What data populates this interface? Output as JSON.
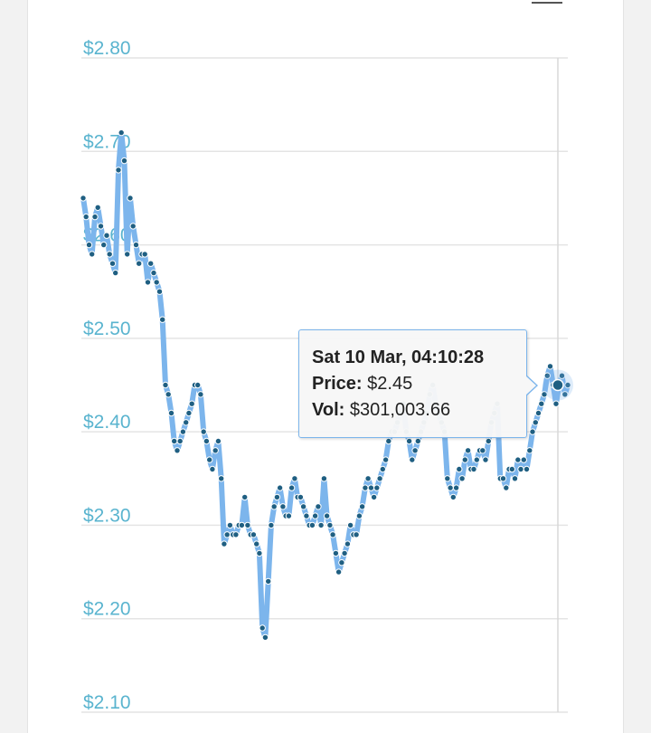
{
  "chart_data": {
    "type": "line",
    "y_ticks": [
      "$2.80",
      "$2.70",
      "$2.60",
      "$2.50",
      "$2.40",
      "$2.30",
      "$2.20",
      "$2.10"
    ],
    "ylim": [
      2.1,
      2.8
    ],
    "grid": true,
    "series_color": "#7cb5ec",
    "marker_color": "#1f5f82",
    "tick_color": "#5ab4cf",
    "series": [
      {
        "values": [
          2.65,
          2.63,
          2.6,
          2.59,
          2.63,
          2.64,
          2.62,
          2.6,
          2.61,
          2.59,
          2.58,
          2.57,
          2.68,
          2.72,
          2.69,
          2.59,
          2.65,
          2.62,
          2.6,
          2.58,
          2.59,
          2.59,
          2.56,
          2.58,
          2.57,
          2.56,
          2.55,
          2.52,
          2.45,
          2.44,
          2.42,
          2.39,
          2.38,
          2.39,
          2.4,
          2.41,
          2.42,
          2.43,
          2.45,
          2.45,
          2.44,
          2.4,
          2.39,
          2.37,
          2.36,
          2.38,
          2.39,
          2.35,
          2.28,
          2.29,
          2.3,
          2.29,
          2.29,
          2.3,
          2.3,
          2.33,
          2.3,
          2.29,
          2.29,
          2.28,
          2.27,
          2.19,
          2.18,
          2.24,
          2.3,
          2.32,
          2.33,
          2.34,
          2.32,
          2.31,
          2.31,
          2.34,
          2.35,
          2.33,
          2.33,
          2.32,
          2.31,
          2.3,
          2.3,
          2.31,
          2.32,
          2.3,
          2.35,
          2.31,
          2.3,
          2.29,
          2.27,
          2.25,
          2.26,
          2.27,
          2.28,
          2.3,
          2.29,
          2.29,
          2.31,
          2.32,
          2.34,
          2.35,
          2.34,
          2.33,
          2.34,
          2.35,
          2.36,
          2.37,
          2.39,
          2.4,
          2.4,
          2.41,
          2.42,
          2.43,
          2.4,
          2.39,
          2.37,
          2.38,
          2.39,
          2.4,
          2.41,
          2.42,
          2.44,
          2.45,
          2.43,
          2.42,
          2.41,
          2.4,
          2.35,
          2.34,
          2.33,
          2.34,
          2.36,
          2.35,
          2.37,
          2.38,
          2.36,
          2.36,
          2.37,
          2.38,
          2.38,
          2.37,
          2.39,
          2.41,
          2.42,
          2.43,
          2.35,
          2.35,
          2.34,
          2.36,
          2.36,
          2.35,
          2.37,
          2.36,
          2.37,
          2.36,
          2.38,
          2.4,
          2.41,
          2.42,
          2.43,
          2.44,
          2.46,
          2.47,
          2.45,
          2.43,
          2.45,
          2.46,
          2.44,
          2.45
        ],
        "last_point": 2.45
      }
    ],
    "tooltip": {
      "date": "Sat 10 Mar, 04:10:28",
      "price_label": "Price:",
      "price_value": "$2.45",
      "vol_label": "Vol:",
      "vol_value": "$301,003.66"
    }
  }
}
